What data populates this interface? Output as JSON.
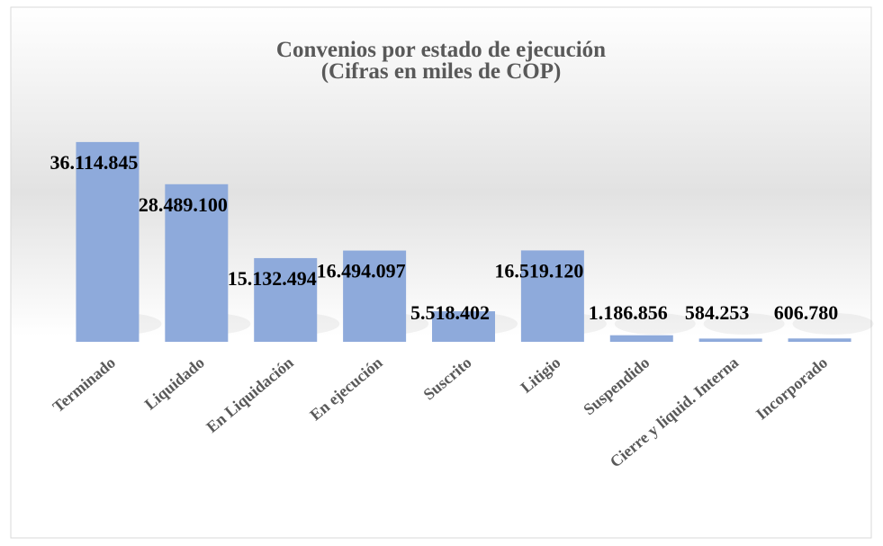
{
  "chart_data": {
    "type": "bar",
    "title": "Convenios por estado de ejecución",
    "subtitle": "(Cifras en miles de COP)",
    "categories": [
      "Terminado",
      "Liquidado",
      "En Liquidación",
      "En ejecución",
      "Suscrito",
      "Litigio",
      "Suspendido",
      "Cierre y liquid. Interna",
      "Incorporado"
    ],
    "values": [
      36114845,
      28489100,
      15132494,
      16494097,
      5518402,
      16519120,
      1186856,
      584253,
      606780
    ],
    "value_labels": [
      "36.114.845",
      "28.489.100",
      "15.132.494",
      "16.494.097",
      "5.518.402",
      "16.519.120",
      "1.186.856",
      "584.253",
      "606.780"
    ],
    "color": "#8eaadb",
    "ylim": [
      0,
      40000000
    ]
  }
}
